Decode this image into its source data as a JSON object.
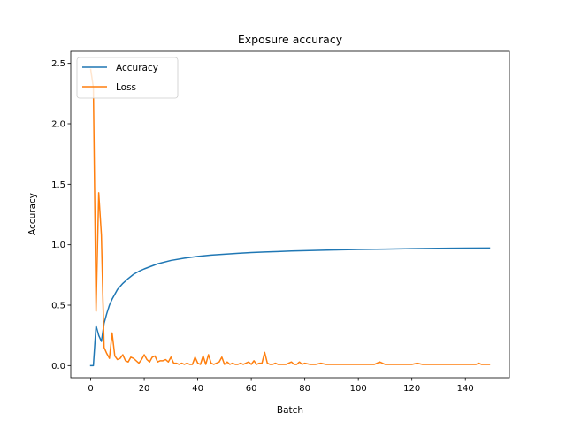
{
  "chart_data": {
    "type": "line",
    "title": "Exposure accuracy",
    "xlabel": "Batch",
    "ylabel": "Accuracy",
    "xlim": [
      -7.45,
      156.45
    ],
    "ylim": [
      -0.1,
      2.6
    ],
    "xticks": [
      0,
      20,
      40,
      60,
      80,
      100,
      120,
      140
    ],
    "xtick_labels": [
      "0",
      "20",
      "40",
      "60",
      "80",
      "100",
      "120",
      "140"
    ],
    "yticks": [
      0.0,
      0.5,
      1.0,
      1.5,
      2.0,
      2.5
    ],
    "ytick_labels": [
      "0.0",
      "0.5",
      "1.0",
      "1.5",
      "2.0",
      "2.5"
    ],
    "grid": false,
    "legend_position": "upper-left",
    "series": [
      {
        "name": "Accuracy",
        "color": "#1f77b4",
        "x": [
          0,
          1,
          2,
          3,
          4,
          5,
          6,
          7,
          8,
          9,
          10,
          12,
          14,
          16,
          18,
          20,
          25,
          30,
          35,
          40,
          45,
          50,
          55,
          60,
          65,
          70,
          75,
          80,
          90,
          100,
          110,
          120,
          130,
          140,
          149
        ],
        "y": [
          0.0,
          0.0,
          0.33,
          0.25,
          0.2,
          0.35,
          0.43,
          0.5,
          0.55,
          0.59,
          0.63,
          0.68,
          0.72,
          0.755,
          0.78,
          0.8,
          0.842,
          0.87,
          0.889,
          0.903,
          0.914,
          0.922,
          0.929,
          0.935,
          0.94,
          0.944,
          0.948,
          0.951,
          0.956,
          0.961,
          0.964,
          0.967,
          0.97,
          0.972,
          0.973
        ]
      },
      {
        "name": "Loss",
        "color": "#ff7f0e",
        "x": [
          0,
          1,
          2,
          3,
          4,
          5,
          6,
          7,
          8,
          9,
          10,
          11,
          12,
          13,
          14,
          15,
          16,
          17,
          18,
          19,
          20,
          21,
          22,
          23,
          24,
          25,
          26,
          27,
          28,
          29,
          30,
          31,
          32,
          33,
          34,
          35,
          36,
          37,
          38,
          39,
          40,
          41,
          42,
          43,
          44,
          45,
          46,
          47,
          48,
          49,
          50,
          51,
          52,
          53,
          54,
          55,
          56,
          57,
          58,
          59,
          60,
          61,
          62,
          63,
          64,
          65,
          66,
          67,
          68,
          69,
          70,
          71,
          72,
          73,
          74,
          75,
          76,
          77,
          78,
          79,
          80,
          82,
          84,
          86,
          88,
          90,
          92,
          94,
          96,
          98,
          100,
          102,
          104,
          106,
          107,
          108,
          110,
          112,
          114,
          116,
          118,
          120,
          122,
          124,
          126,
          128,
          130,
          132,
          134,
          136,
          138,
          140,
          142,
          144,
          145,
          146,
          147,
          149
        ],
        "y": [
          2.45,
          2.3,
          0.45,
          1.43,
          1.08,
          0.15,
          0.1,
          0.06,
          0.27,
          0.08,
          0.05,
          0.06,
          0.09,
          0.04,
          0.03,
          0.07,
          0.06,
          0.04,
          0.02,
          0.05,
          0.09,
          0.05,
          0.03,
          0.07,
          0.08,
          0.03,
          0.04,
          0.04,
          0.05,
          0.03,
          0.07,
          0.02,
          0.02,
          0.01,
          0.02,
          0.01,
          0.02,
          0.01,
          0.01,
          0.07,
          0.02,
          0.01,
          0.08,
          0.01,
          0.09,
          0.02,
          0.01,
          0.02,
          0.03,
          0.07,
          0.01,
          0.03,
          0.01,
          0.02,
          0.01,
          0.01,
          0.02,
          0.01,
          0.02,
          0.03,
          0.01,
          0.04,
          0.01,
          0.02,
          0.02,
          0.11,
          0.02,
          0.01,
          0.01,
          0.02,
          0.01,
          0.01,
          0.01,
          0.01,
          0.02,
          0.03,
          0.01,
          0.01,
          0.03,
          0.01,
          0.02,
          0.01,
          0.01,
          0.02,
          0.01,
          0.01,
          0.01,
          0.01,
          0.01,
          0.01,
          0.01,
          0.01,
          0.01,
          0.01,
          0.02,
          0.03,
          0.01,
          0.01,
          0.01,
          0.01,
          0.01,
          0.01,
          0.02,
          0.01,
          0.01,
          0.01,
          0.01,
          0.01,
          0.01,
          0.01,
          0.01,
          0.01,
          0.01,
          0.01,
          0.02,
          0.01,
          0.01,
          0.01
        ]
      }
    ]
  }
}
